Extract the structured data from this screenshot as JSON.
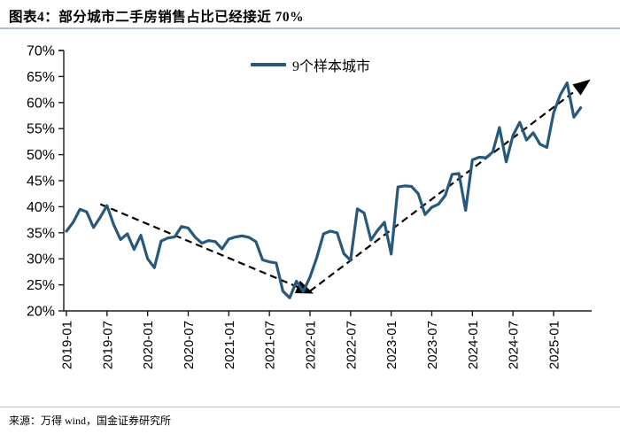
{
  "header": {
    "title": "图表4：部分城市二手房销售占比已经接近 70%"
  },
  "footer": {
    "source": "来源：万得 wind，国金证券研究所"
  },
  "colors": {
    "series_line": "#28587a",
    "trend_line": "#000000",
    "axis": "#1a1a1a",
    "rule": "#b3bfd6"
  },
  "chart_data": {
    "type": "line",
    "title": "部分城市二手房销售占比已经接近 70%",
    "xlabel": "",
    "ylabel": "",
    "ylim": [
      20,
      70
    ],
    "y_tick_step": 5,
    "y_tick_format": "percent",
    "grid": false,
    "legend_position": "top-center",
    "x_tick_labels": [
      "2019-01",
      "2019-07",
      "2020-01",
      "2020-07",
      "2021-01",
      "2021-07",
      "2022-01",
      "2022-07",
      "2023-01",
      "2023-07",
      "2024-01",
      "2024-07",
      "2025-01"
    ],
    "categories": [
      "2019-01",
      "2019-02",
      "2019-03",
      "2019-04",
      "2019-05",
      "2019-06",
      "2019-07",
      "2019-08",
      "2019-09",
      "2019-10",
      "2019-11",
      "2019-12",
      "2020-01",
      "2020-02",
      "2020-03",
      "2020-04",
      "2020-05",
      "2020-06",
      "2020-07",
      "2020-08",
      "2020-09",
      "2020-10",
      "2020-11",
      "2020-12",
      "2021-01",
      "2021-02",
      "2021-03",
      "2021-04",
      "2021-05",
      "2021-06",
      "2021-07",
      "2021-08",
      "2021-09",
      "2021-10",
      "2021-11",
      "2021-12",
      "2022-01",
      "2022-02",
      "2022-03",
      "2022-04",
      "2022-05",
      "2022-06",
      "2022-07",
      "2022-08",
      "2022-09",
      "2022-10",
      "2022-11",
      "2022-12",
      "2023-01",
      "2023-02",
      "2023-03",
      "2023-04",
      "2023-05",
      "2023-06",
      "2023-07",
      "2023-08",
      "2023-09",
      "2023-10",
      "2023-11",
      "2023-12",
      "2024-01",
      "2024-02",
      "2024-03",
      "2024-04",
      "2024-05",
      "2024-06",
      "2024-07",
      "2024-08",
      "2024-09",
      "2024-10",
      "2024-11",
      "2024-12",
      "2025-01",
      "2025-02",
      "2025-03",
      "2025-04",
      "2025-05"
    ],
    "series": [
      {
        "name": "9个样本城市",
        "color": "#28587a",
        "unit": "%",
        "values": [
          35.3,
          37.0,
          39.5,
          39.0,
          36.0,
          38.0,
          40.2,
          36.5,
          33.7,
          34.8,
          31.8,
          34.5,
          30.0,
          28.3,
          33.4,
          34.0,
          34.2,
          36.2,
          35.9,
          34.2,
          33.0,
          33.5,
          33.3,
          31.9,
          33.8,
          34.2,
          34.4,
          34.1,
          33.3,
          29.8,
          29.4,
          29.2,
          23.8,
          22.5,
          25.7,
          23.7,
          26.5,
          30.2,
          34.8,
          35.3,
          35.0,
          31.0,
          29.7,
          39.6,
          38.8,
          33.6,
          35.5,
          37.0,
          30.9,
          43.8,
          44.0,
          43.9,
          42.5,
          38.5,
          39.9,
          40.5,
          42.2,
          46.2,
          46.4,
          39.3,
          49.0,
          49.5,
          49.4,
          50.5,
          55.2,
          48.6,
          53.7,
          56.2,
          52.8,
          54.2,
          52.0,
          51.4,
          58.0,
          61.5,
          63.8,
          57.2,
          59.0
        ]
      }
    ],
    "trend_lines": [
      {
        "style": "dashed",
        "color": "#000000",
        "arrow": "end",
        "from": {
          "month": "2019-06",
          "value": 40.5
        },
        "to": {
          "month": "2022-01",
          "value": 23.6
        }
      },
      {
        "style": "dashed",
        "color": "#000000",
        "arrow": "end",
        "from": {
          "month": "2022-01",
          "value": 23.8
        },
        "to": {
          "month": "2025-06",
          "value": 64.0
        }
      }
    ]
  }
}
